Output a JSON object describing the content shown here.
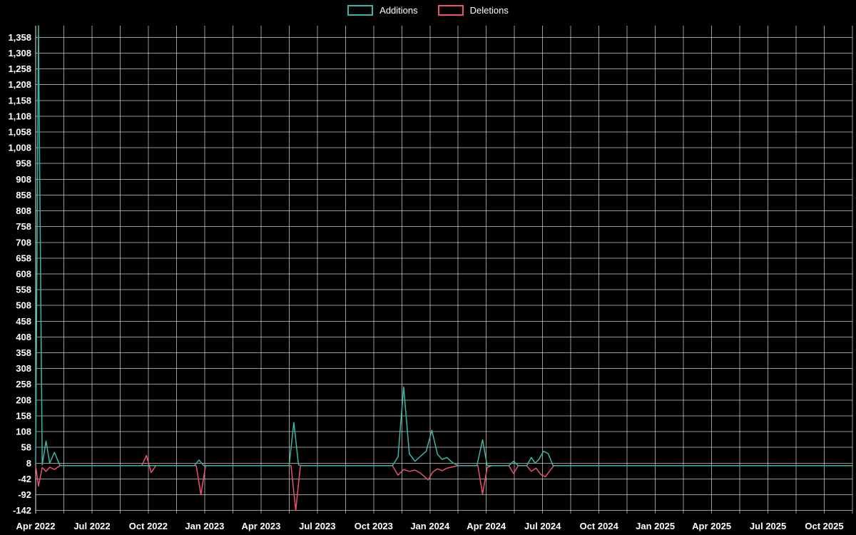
{
  "legend": {
    "items": [
      {
        "label": "Additions",
        "color": "#3cb5a8"
      },
      {
        "label": "Deletions",
        "color": "#ee5170"
      }
    ]
  },
  "chart_data": {
    "type": "line",
    "title": "",
    "xlabel": "",
    "ylabel": "",
    "background": "#000000",
    "grid": true,
    "grid_color": "rgba(255,255,255,0.6)",
    "axis_color": "#e8e8e8",
    "text_color": "#ffffff",
    "legend_position": "top-center",
    "x_axis": {
      "unit": "months since Apr 2022",
      "range": [
        0,
        43.5
      ],
      "tick_step_months": 3,
      "gridline_step_months": 1.5,
      "tick_labels": [
        "Apr 2022",
        "Jul 2022",
        "Oct 2022",
        "Jan 2023",
        "Apr 2023",
        "Jul 2023",
        "Oct 2023",
        "Jan 2024",
        "Apr 2024",
        "Jul 2024",
        "Oct 2024",
        "Jan 2025",
        "Apr 2025",
        "Jul 2025",
        "Oct 2025"
      ]
    },
    "y_axis": {
      "range": [
        -152,
        1395
      ],
      "tick_step": 50,
      "ticks": [
        -142,
        -92,
        -42,
        8,
        58,
        108,
        158,
        208,
        258,
        308,
        358,
        408,
        458,
        508,
        558,
        608,
        658,
        708,
        758,
        808,
        858,
        908,
        958,
        1008,
        1058,
        1108,
        1158,
        1208,
        1258,
        1308,
        1358
      ]
    },
    "series": [
      {
        "name": "Additions",
        "color": "#3cb5a8",
        "points": [
          [
            0,
            0
          ],
          [
            0.15,
            1395
          ],
          [
            0.35,
            2
          ],
          [
            0.55,
            78
          ],
          [
            0.75,
            8
          ],
          [
            1.0,
            42
          ],
          [
            1.3,
            0
          ],
          [
            8.45,
            0
          ],
          [
            8.7,
            18
          ],
          [
            8.95,
            0
          ],
          [
            13.5,
            0
          ],
          [
            13.75,
            137
          ],
          [
            14.0,
            2
          ],
          [
            14.2,
            0
          ],
          [
            19.0,
            0
          ],
          [
            19.3,
            28
          ],
          [
            19.6,
            250
          ],
          [
            19.9,
            38
          ],
          [
            20.2,
            14
          ],
          [
            20.5,
            30
          ],
          [
            20.8,
            46
          ],
          [
            21.1,
            112
          ],
          [
            21.4,
            36
          ],
          [
            21.65,
            20
          ],
          [
            21.9,
            26
          ],
          [
            22.2,
            10
          ],
          [
            22.5,
            0
          ],
          [
            23.5,
            0
          ],
          [
            23.8,
            82
          ],
          [
            24.05,
            0
          ],
          [
            25.2,
            0
          ],
          [
            25.45,
            14
          ],
          [
            25.7,
            0
          ],
          [
            26.15,
            0
          ],
          [
            26.4,
            26
          ],
          [
            26.6,
            8
          ],
          [
            26.8,
            20
          ],
          [
            27.05,
            46
          ],
          [
            27.3,
            38
          ],
          [
            27.55,
            0
          ],
          [
            43.5,
            0
          ]
        ]
      },
      {
        "name": "Deletions",
        "color": "#ee5170",
        "points": [
          [
            0,
            0
          ],
          [
            0.15,
            -65
          ],
          [
            0.35,
            -6
          ],
          [
            0.55,
            -18
          ],
          [
            0.75,
            -5
          ],
          [
            1.0,
            -12
          ],
          [
            1.3,
            0
          ],
          [
            5.65,
            0
          ],
          [
            5.9,
            32
          ],
          [
            6.15,
            -22
          ],
          [
            6.4,
            0
          ],
          [
            8.55,
            0
          ],
          [
            8.8,
            -92
          ],
          [
            9.05,
            0
          ],
          [
            13.6,
            0
          ],
          [
            13.85,
            -142
          ],
          [
            14.1,
            0
          ],
          [
            19.0,
            0
          ],
          [
            19.3,
            -30
          ],
          [
            19.6,
            -12
          ],
          [
            19.9,
            -18
          ],
          [
            20.2,
            -14
          ],
          [
            20.5,
            -24
          ],
          [
            20.9,
            -45
          ],
          [
            21.15,
            -20
          ],
          [
            21.4,
            -10
          ],
          [
            21.65,
            -16
          ],
          [
            21.9,
            -8
          ],
          [
            22.2,
            -4
          ],
          [
            22.5,
            0
          ],
          [
            23.55,
            0
          ],
          [
            23.8,
            -90
          ],
          [
            24.05,
            -6
          ],
          [
            24.3,
            0
          ],
          [
            25.2,
            0
          ],
          [
            25.45,
            -25
          ],
          [
            25.7,
            0
          ],
          [
            26.15,
            0
          ],
          [
            26.4,
            -18
          ],
          [
            26.65,
            -8
          ],
          [
            26.9,
            -28
          ],
          [
            27.15,
            -35
          ],
          [
            27.4,
            -15
          ],
          [
            27.6,
            0
          ],
          [
            43.5,
            0
          ]
        ]
      }
    ]
  }
}
